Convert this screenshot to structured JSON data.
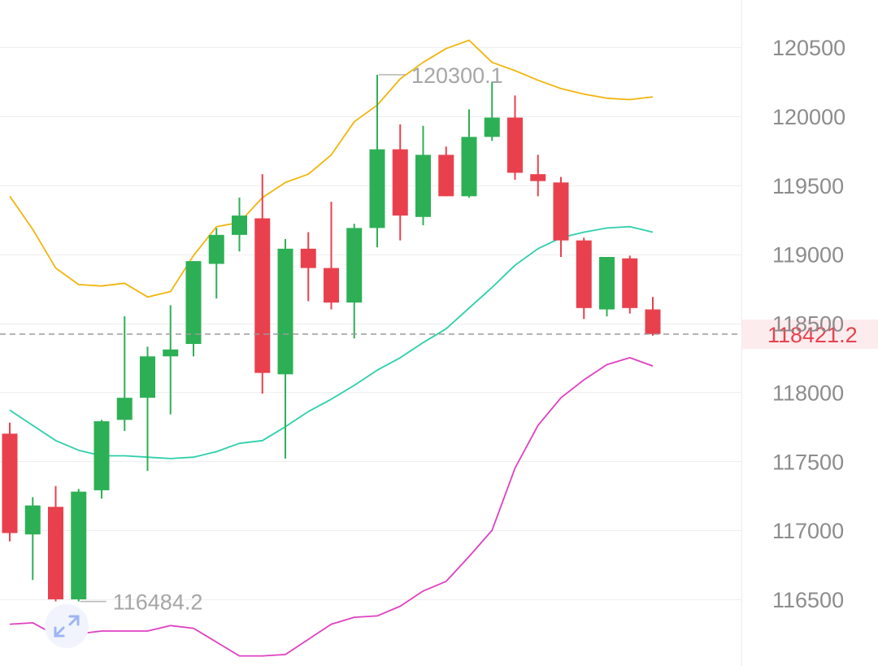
{
  "colors": {
    "up": "#2db055",
    "down": "#e8414d",
    "boll_upper": "#f2b50d",
    "boll_mid": "#2ecfaa",
    "boll_lower": "#e040c0",
    "grid": "#eeeeee",
    "axis_text": "#8c8c8c",
    "current_price": "#e8414d",
    "current_price_bg": "#fdecee",
    "expand_icon": "#9db5f2"
  },
  "icons": {
    "expand": "expand-arrows-icon"
  },
  "chart_data": {
    "type": "candlestick",
    "title": "",
    "y_axis": {
      "position": "right",
      "ylim": [
        116250,
        120850
      ],
      "ticks": [
        116500,
        117000,
        117500,
        118000,
        118500,
        119000,
        119500,
        120000,
        120500
      ],
      "tick_labels": [
        "116500",
        "117000",
        "117500",
        "118000",
        "118500",
        "119000",
        "119500",
        "120000",
        "120500"
      ]
    },
    "grid": true,
    "current_price": {
      "value": 118421.2,
      "label": "118421.2"
    },
    "high_marker": {
      "value": 120300.1,
      "label": "120300.1",
      "candle_index": 16
    },
    "low_marker": {
      "value": 116484.2,
      "label": "116484.2",
      "candle_index": 3
    },
    "candles": [
      {
        "o": 117700,
        "h": 117780,
        "l": 116920,
        "c": 116980
      },
      {
        "o": 116970,
        "h": 117240,
        "l": 116640,
        "c": 117180
      },
      {
        "o": 117170,
        "h": 117320,
        "l": 116484.2,
        "c": 116500
      },
      {
        "o": 116500,
        "h": 117300,
        "l": 116484.2,
        "c": 117280
      },
      {
        "o": 117290,
        "h": 117800,
        "l": 117230,
        "c": 117790
      },
      {
        "o": 117800,
        "h": 118550,
        "l": 117720,
        "c": 117960
      },
      {
        "o": 117960,
        "h": 118330,
        "l": 117430,
        "c": 118260
      },
      {
        "o": 118260,
        "h": 118630,
        "l": 117840,
        "c": 118310
      },
      {
        "o": 118350,
        "h": 118950,
        "l": 118260,
        "c": 118950
      },
      {
        "o": 118930,
        "h": 119190,
        "l": 118680,
        "c": 119140
      },
      {
        "o": 119140,
        "h": 119410,
        "l": 119020,
        "c": 119280
      },
      {
        "o": 119260,
        "h": 119580,
        "l": 117990,
        "c": 118140
      },
      {
        "o": 118130,
        "h": 119110,
        "l": 117520,
        "c": 119040
      },
      {
        "o": 119040,
        "h": 119160,
        "l": 118660,
        "c": 118900
      },
      {
        "o": 118900,
        "h": 119380,
        "l": 118600,
        "c": 118650
      },
      {
        "o": 118650,
        "h": 119220,
        "l": 118390,
        "c": 119190
      },
      {
        "o": 119190,
        "h": 120300.1,
        "l": 119050,
        "c": 119760
      },
      {
        "o": 119760,
        "h": 119940,
        "l": 119100,
        "c": 119280
      },
      {
        "o": 119270,
        "h": 119930,
        "l": 119210,
        "c": 119720
      },
      {
        "o": 119720,
        "h": 119780,
        "l": 119420,
        "c": 119420
      },
      {
        "o": 119420,
        "h": 120050,
        "l": 119410,
        "c": 119850
      },
      {
        "o": 119850,
        "h": 120250,
        "l": 119820,
        "c": 119990
      },
      {
        "o": 119990,
        "h": 120150,
        "l": 119540,
        "c": 119590
      },
      {
        "o": 119580,
        "h": 119720,
        "l": 119420,
        "c": 119530
      },
      {
        "o": 119520,
        "h": 119560,
        "l": 118980,
        "c": 119100
      },
      {
        "o": 119100,
        "h": 119120,
        "l": 118530,
        "c": 118610
      },
      {
        "o": 118600,
        "h": 118980,
        "l": 118550,
        "c": 118980
      },
      {
        "o": 118970,
        "h": 118990,
        "l": 118570,
        "c": 118610
      },
      {
        "o": 118600,
        "h": 118690,
        "l": 118410,
        "c": 118421.2
      }
    ],
    "series": [
      {
        "key": "upper",
        "values": [
          119420,
          119180,
          118900,
          118780,
          118770,
          118790,
          118690,
          118730,
          118990,
          119200,
          119230,
          119410,
          119520,
          119580,
          119720,
          119960,
          120080,
          120270,
          120390,
          120490,
          120550,
          120390,
          120330,
          120260,
          120200,
          120160,
          120130,
          120120,
          120140
        ]
      },
      {
        "key": "middle",
        "values": [
          117870,
          117760,
          117650,
          117580,
          117540,
          117540,
          117530,
          117520,
          117530,
          117570,
          117630,
          117650,
          117750,
          117860,
          117950,
          118050,
          118160,
          118250,
          118360,
          118460,
          118610,
          118760,
          118920,
          119040,
          119120,
          119160,
          119190,
          119200,
          119160
        ]
      },
      {
        "key": "lower",
        "values": [
          116320,
          116330,
          116240,
          116250,
          116270,
          116270,
          116270,
          116310,
          116290,
          116190,
          116090,
          116090,
          116100,
          116210,
          116320,
          116370,
          116380,
          116450,
          116560,
          116630,
          116810,
          117000,
          117450,
          117760,
          117960,
          118090,
          118200,
          118250,
          118190
        ]
      }
    ]
  }
}
